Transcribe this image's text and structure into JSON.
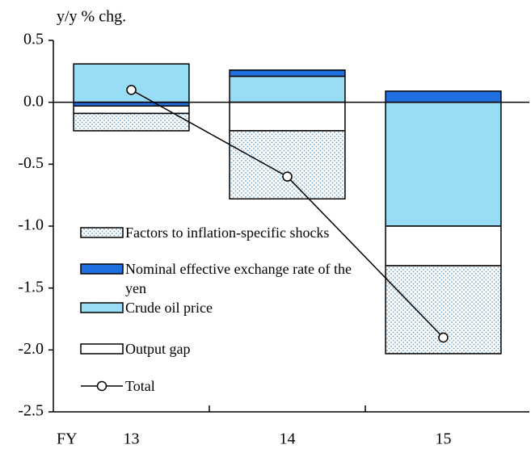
{
  "chart_data": {
    "type": "bar",
    "y_label": "y/y % chg.",
    "x_label": "FY",
    "categories": [
      "13",
      "14",
      "15"
    ],
    "ylim": [
      -2.5,
      0.5
    ],
    "yticks": [
      0.5,
      {
        "value": 0,
        "label": "0.0"
      },
      -0.5,
      {
        "value": -1,
        "label": "-1.0"
      },
      -1.5,
      {
        "value": -2,
        "label": "-2.0"
      },
      -2.5
    ],
    "series": [
      {
        "name": "Factors to inflation-specific shocks",
        "color": "#ffffff",
        "dot_color": "#6a9fc7",
        "hatch": "dots",
        "values": [
          -0.14,
          -0.55,
          -0.71
        ]
      },
      {
        "name": "Nominal effective exchange rate of the yen",
        "color": "#1f6fe0",
        "values": [
          -0.03,
          0.05,
          0.09
        ]
      },
      {
        "name": "Crude oil price",
        "color": "#99dcf5",
        "values": [
          0.31,
          0.21,
          -1.0
        ]
      },
      {
        "name": "Output gap",
        "color": "#ffffff",
        "values": [
          -0.06,
          -0.23,
          -0.32
        ]
      },
      {
        "name": "Total",
        "type": "line",
        "color": "#000000",
        "values": [
          0.1,
          -0.6,
          -1.9
        ]
      }
    ]
  }
}
